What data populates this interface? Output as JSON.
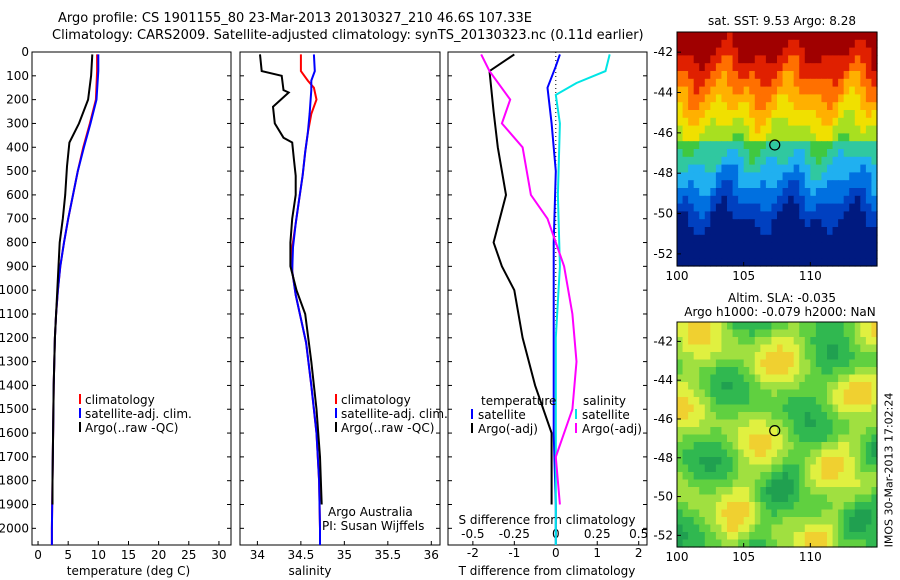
{
  "header": {
    "line1": "Argo profile: CS 1901155_80 23-Mar-2013 20130327_210 46.6S 107.33E",
    "line2": "Climatology: CARS2009. Satellite-adjusted climatology: synTS_20130323.nc (0.11d earlier)"
  },
  "colors": {
    "red": "#ff0000",
    "blue": "#0000ff",
    "black": "#000000",
    "cyan": "#00e5e5",
    "magenta": "#ff00ff"
  },
  "depth_ticks": [
    "0",
    "100",
    "200",
    "300",
    "400",
    "500",
    "600",
    "700",
    "800",
    "900",
    "1000",
    "1100",
    "1200",
    "1300",
    "1400",
    "1500",
    "1600",
    "1700",
    "1800",
    "1900",
    "2000"
  ],
  "chart_data": [
    {
      "type": "line",
      "panel": "temperature",
      "xlabel": "temperature (deg C)",
      "xlim": [
        -1,
        32
      ],
      "xticks": [
        "0",
        "5",
        "10",
        "15",
        "20",
        "25",
        "30"
      ],
      "ylim": [
        2070,
        0
      ],
      "legend": [
        "climatology",
        "satellite-adj. clim.",
        "Argo(..raw -QC)"
      ],
      "legend_placement": "lower-middle",
      "series": [
        {
          "name": "climatology",
          "color": "red",
          "points": [
            [
              9.8,
              10
            ],
            [
              9.8,
              80
            ],
            [
              9.6,
              200
            ],
            [
              8.6,
              300
            ],
            [
              7.5,
              400
            ],
            [
              6.6,
              500
            ],
            [
              5.8,
              600
            ],
            [
              5.0,
              700
            ],
            [
              4.3,
              800
            ],
            [
              3.7,
              900
            ],
            [
              3.3,
              1000
            ],
            [
              3.0,
              1100
            ],
            [
              2.8,
              1200
            ],
            [
              2.6,
              1400
            ],
            [
              2.5,
              1600
            ],
            [
              2.4,
              1800
            ],
            [
              2.3,
              2000
            ],
            [
              2.3,
              2070
            ]
          ]
        },
        {
          "name": "satellite-adj. clim.",
          "color": "blue",
          "points": [
            [
              10.0,
              10
            ],
            [
              10.0,
              80
            ],
            [
              9.7,
              200
            ],
            [
              8.7,
              300
            ],
            [
              7.6,
              400
            ],
            [
              6.6,
              500
            ],
            [
              5.8,
              600
            ],
            [
              5.0,
              700
            ],
            [
              4.3,
              800
            ],
            [
              3.7,
              900
            ],
            [
              3.3,
              1000
            ],
            [
              3.0,
              1100
            ],
            [
              2.8,
              1200
            ],
            [
              2.6,
              1400
            ],
            [
              2.5,
              1600
            ],
            [
              2.4,
              1800
            ],
            [
              2.3,
              2000
            ],
            [
              2.3,
              2070
            ]
          ]
        },
        {
          "name": "Argo(..raw -QC)",
          "color": "black",
          "points": [
            [
              9.0,
              10
            ],
            [
              8.8,
              100
            ],
            [
              8.3,
              200
            ],
            [
              6.8,
              300
            ],
            [
              5.2,
              380
            ],
            [
              4.8,
              480
            ],
            [
              4.5,
              600
            ],
            [
              4.1,
              700
            ],
            [
              3.6,
              800
            ],
            [
              3.4,
              900
            ],
            [
              3.2,
              1000
            ],
            [
              3.0,
              1100
            ],
            [
              2.8,
              1200
            ],
            [
              2.7,
              1300
            ],
            [
              2.6,
              1400
            ],
            [
              2.5,
              1600
            ],
            [
              2.4,
              1800
            ],
            [
              2.4,
              1900
            ]
          ]
        }
      ]
    },
    {
      "type": "line",
      "panel": "salinity",
      "xlabel": "salinity",
      "xlim": [
        33.8,
        36.1
      ],
      "xticks": [
        "34",
        "34.5",
        "35",
        "35.5",
        "36"
      ],
      "ylim": [
        2070,
        0
      ],
      "legend": [
        "climatology",
        "satellite-adj. clim.",
        "Argo(..raw -QC)"
      ],
      "legend_placement": "lower-right",
      "annotations": [
        "Argo Australia",
        "PI: Susan Wijffels"
      ],
      "series": [
        {
          "name": "climatology",
          "color": "red",
          "points": [
            [
              34.5,
              10
            ],
            [
              34.5,
              80
            ],
            [
              34.58,
              120
            ],
            [
              34.65,
              150
            ],
            [
              34.68,
              200
            ],
            [
              34.62,
              260
            ],
            [
              34.58,
              340
            ],
            [
              34.55,
              420
            ],
            [
              34.52,
              520
            ],
            [
              34.48,
              620
            ],
            [
              34.44,
              720
            ],
            [
              34.4,
              820
            ],
            [
              34.4,
              920
            ],
            [
              34.44,
              1020
            ],
            [
              34.5,
              1120
            ],
            [
              34.56,
              1220
            ],
            [
              34.62,
              1400
            ],
            [
              34.68,
              1600
            ],
            [
              34.71,
              1800
            ],
            [
              34.72,
              2000
            ],
            [
              34.72,
              2070
            ]
          ]
        },
        {
          "name": "satellite-adj. clim.",
          "color": "blue",
          "points": [
            [
              34.65,
              10
            ],
            [
              34.66,
              80
            ],
            [
              34.62,
              120
            ],
            [
              34.62,
              160
            ],
            [
              34.6,
              260
            ],
            [
              34.58,
              340
            ],
            [
              34.55,
              420
            ],
            [
              34.52,
              520
            ],
            [
              34.48,
              620
            ],
            [
              34.44,
              720
            ],
            [
              34.41,
              820
            ],
            [
              34.4,
              920
            ],
            [
              34.44,
              1020
            ],
            [
              34.5,
              1120
            ],
            [
              34.56,
              1220
            ],
            [
              34.62,
              1400
            ],
            [
              34.68,
              1600
            ],
            [
              34.71,
              1800
            ],
            [
              34.72,
              2000
            ],
            [
              34.72,
              2070
            ]
          ]
        },
        {
          "name": "Argo(..raw -QC)",
          "color": "black",
          "points": [
            [
              34.03,
              10
            ],
            [
              34.05,
              80
            ],
            [
              34.28,
              100
            ],
            [
              34.3,
              160
            ],
            [
              34.36,
              170
            ],
            [
              34.18,
              230
            ],
            [
              34.2,
              300
            ],
            [
              34.3,
              360
            ],
            [
              34.4,
              380
            ],
            [
              34.42,
              450
            ],
            [
              34.44,
              520
            ],
            [
              34.44,
              600
            ],
            [
              34.4,
              700
            ],
            [
              34.38,
              800
            ],
            [
              34.38,
              900
            ],
            [
              34.45,
              1000
            ],
            [
              34.55,
              1100
            ],
            [
              34.62,
              1300
            ],
            [
              34.68,
              1500
            ],
            [
              34.72,
              1700
            ],
            [
              34.74,
              1900
            ]
          ]
        }
      ]
    },
    {
      "type": "line",
      "panel": "differences",
      "xlabel_top": "S difference from climatology",
      "xlabel": "T difference from climatology",
      "xlim": [
        -2.6,
        2.2
      ],
      "xticks_top": [
        "-0.5",
        "-0.25",
        "0",
        "0.25",
        "0.5"
      ],
      "xticks_bottom": [
        "-2",
        "-1",
        "0",
        "1",
        "2"
      ],
      "ylim": [
        2070,
        0
      ],
      "legend_temperature": [
        "temperature",
        "satellite",
        "Argo(-adj)"
      ],
      "legend_salinity": [
        "salinity",
        "satellite",
        "Argo(-adj)"
      ],
      "series": [
        {
          "name": "temperature satellite",
          "color": "blue",
          "points": [
            [
              0.1,
              10
            ],
            [
              0.0,
              60
            ],
            [
              -0.2,
              150
            ],
            [
              -0.1,
              300
            ],
            [
              0.0,
              500
            ],
            [
              -0.05,
              800
            ],
            [
              -0.05,
              1200
            ],
            [
              -0.05,
              1600
            ],
            [
              0.0,
              1900
            ],
            [
              0.0,
              2070
            ]
          ]
        },
        {
          "name": "temperature Argo(-adj)",
          "color": "black",
          "points": [
            [
              -1.0,
              10
            ],
            [
              -1.6,
              80
            ],
            [
              -1.5,
              250
            ],
            [
              -1.4,
              400
            ],
            [
              -1.2,
              600
            ],
            [
              -1.5,
              800
            ],
            [
              -1.3,
              900
            ],
            [
              -1.0,
              1000
            ],
            [
              -0.8,
              1200
            ],
            [
              -0.5,
              1400
            ],
            [
              -0.1,
              1600
            ],
            [
              -0.1,
              1900
            ]
          ]
        },
        {
          "name": "salinity satellite",
          "color": "cyan",
          "points": [
            [
              1.3,
              10
            ],
            [
              1.2,
              80
            ],
            [
              0.5,
              130
            ],
            [
              0.0,
              180
            ],
            [
              0.1,
              300
            ],
            [
              0.05,
              600
            ],
            [
              0.1,
              900
            ],
            [
              0.0,
              1200
            ],
            [
              0.0,
              1600
            ],
            [
              0.0,
              2070
            ]
          ]
        },
        {
          "name": "salinity Argo(-adj)",
          "color": "magenta",
          "points": [
            [
              -1.8,
              10
            ],
            [
              -1.6,
              80
            ],
            [
              -1.1,
              200
            ],
            [
              -1.3,
              300
            ],
            [
              -0.8,
              400
            ],
            [
              -0.6,
              600
            ],
            [
              -0.2,
              700
            ],
            [
              0.2,
              900
            ],
            [
              0.4,
              1100
            ],
            [
              0.5,
              1300
            ],
            [
              0.4,
              1500
            ],
            [
              0.0,
              1700
            ],
            [
              0.1,
              1900
            ]
          ]
        }
      ]
    },
    {
      "type": "heatmap",
      "panel": "sat SST",
      "title": "sat. SST: 9.53 Argo: 8.28",
      "xticks": [
        "100",
        "105",
        "110"
      ],
      "yticks": [
        "-42",
        "-44",
        "-46",
        "-48",
        "-50",
        "-52"
      ],
      "marker": {
        "lon": 107.33,
        "lat": -46.6
      },
      "palette": [
        "#001a80",
        "#0040c0",
        "#0070e0",
        "#20b0f0",
        "#30c8a0",
        "#40c840",
        "#a8e020",
        "#f0e000",
        "#ffb000",
        "#ff7000",
        "#e02000",
        "#a00000"
      ]
    },
    {
      "type": "heatmap",
      "panel": "SLA",
      "title": "Altim. SLA: -0.035",
      "subtitle": "Argo h1000: -0.079 h2000: NaN",
      "xticks": [
        "100",
        "105",
        "110"
      ],
      "yticks": [
        "-42",
        "-44",
        "-46",
        "-48",
        "-50",
        "-52"
      ],
      "marker": {
        "lon": 107.33,
        "lat": -46.6
      },
      "palette": [
        "#20a050",
        "#30b850",
        "#60d040",
        "#a0e040",
        "#e0f040",
        "#f0d030"
      ]
    }
  ],
  "footer": {
    "vertical_stamp": "IMOS 30-Mar-2013 17:02:24"
  }
}
